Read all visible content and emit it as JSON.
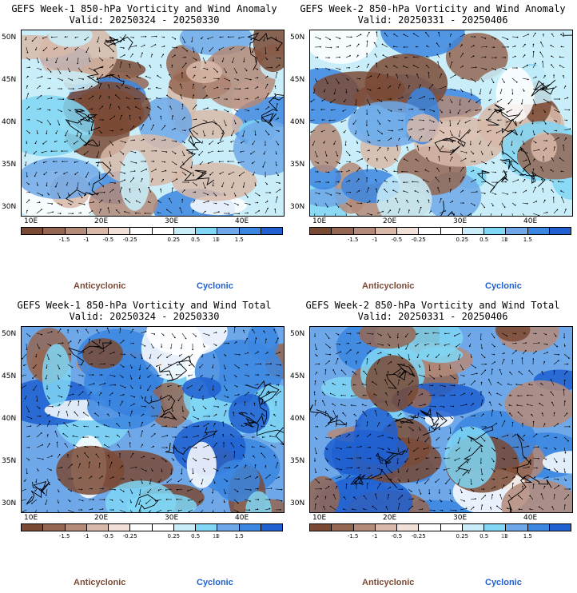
{
  "panels": [
    {
      "title": "GEFS Week-1 850-hPa Vorticity and Wind Anomaly",
      "valid": "Valid: 20250324 - 20250330",
      "seed": 3
    },
    {
      "title": "GEFS Week-2 850-hPa Vorticity and Wind Anomaly",
      "valid": "Valid: 20250331 - 20250406",
      "seed": 7
    },
    {
      "title": "GEFS Week-1 850-hPa Vorticity and Wind Total",
      "valid": "Valid: 20250324 - 20250330",
      "seed": 11
    },
    {
      "title": "GEFS Week-2 850-hPa Vorticity and Wind Total",
      "valid": "Valid: 20250331 - 20250406",
      "seed": 17
    }
  ],
  "lat_labels": [
    "50N",
    "45N",
    "40N",
    "35N",
    "30N"
  ],
  "lon_labels": [
    "10E",
    "20E",
    "30E",
    "40E"
  ],
  "colorbar": {
    "colors": [
      "#7a4a35",
      "#956652",
      "#b48a78",
      "#d8b8a8",
      "#f1e1d8",
      "#ffffff",
      "#ffffff",
      "#c9eefa",
      "#7fd6f5",
      "#6fa8e8",
      "#3b86e0",
      "#1f5fd0"
    ],
    "labels": [
      "-1.5",
      "-1",
      "-0.5",
      "-0.25",
      "0.25",
      "0.5",
      "1",
      "1.5"
    ],
    "unit_marker": "10"
  },
  "legend": {
    "anticyclonic": "Anticyclonic",
    "cyclonic": "Cyclonic",
    "anticyclonic_color": "#7a4a35",
    "cyclonic_color": "#1f5fd0"
  }
}
